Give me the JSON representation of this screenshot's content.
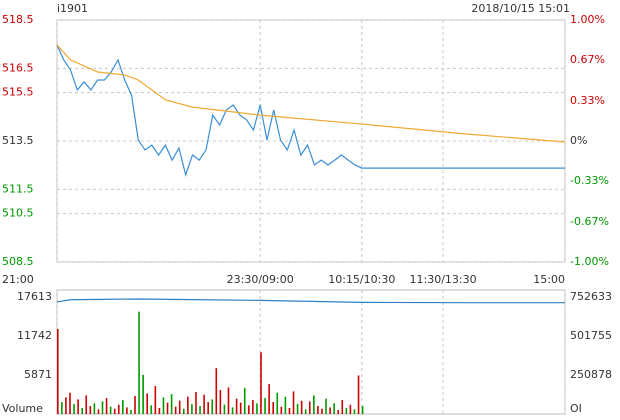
{
  "header": {
    "symbol": "i1901",
    "datetime": "2018/10/15 15:01"
  },
  "chart_data": [
    {
      "type": "line",
      "xlim": [
        0,
        375
      ],
      "xticks": [
        {
          "value": 0,
          "label": "21:00"
        },
        {
          "value": 150,
          "label": "23:30/09:00"
        },
        {
          "value": 225,
          "label": "10:15/10:30"
        },
        {
          "value": 285,
          "label": "11:30/13:30"
        },
        {
          "value": 375,
          "label": "15:00"
        }
      ],
      "ylim": [
        508.5,
        518.5
      ],
      "yticks": [
        518.5,
        516.5,
        515.5,
        513.5,
        511.5,
        510.5,
        508.5
      ],
      "y2lim": [
        -1,
        1
      ],
      "y2ticks": [
        {
          "value": 1,
          "label": "1.00%"
        },
        {
          "value": 0.67,
          "label": "0.67%"
        },
        {
          "value": 0.33,
          "label": "0.33%"
        },
        {
          "value": 0,
          "label": "0%"
        },
        {
          "value": -0.33,
          "label": "-0.33%"
        },
        {
          "value": -0.67,
          "label": "-0.67%"
        },
        {
          "value": -1,
          "label": "-1.00%"
        }
      ],
      "up_color": "#cc0000",
      "down_color": "#009900",
      "grid": true,
      "series": [
        {
          "color": "#3a8ed6",
          "x": [
            0,
            5,
            10,
            15,
            20,
            25,
            30,
            35,
            40,
            45,
            50,
            55,
            60,
            65,
            70,
            75,
            80,
            85,
            90,
            95,
            100,
            105,
            110,
            115,
            120,
            125,
            130,
            135,
            140,
            145,
            150,
            155,
            160,
            165,
            170,
            175,
            180,
            185,
            190,
            195,
            200,
            205,
            210,
            215,
            220,
            225,
            375
          ],
          "values": [
            517.47,
            516.85,
            516.43,
            515.61,
            515.94,
            515.61,
            516.02,
            516.02,
            516.35,
            516.85,
            516.02,
            515.4,
            513.54,
            513.13,
            513.33,
            512.92,
            513.33,
            512.71,
            513.21,
            512.1,
            512.92,
            512.71,
            513.13,
            514.57,
            514.16,
            514.78,
            514.99,
            514.57,
            514.37,
            513.95,
            514.99,
            513.54,
            514.78,
            513.54,
            513.13,
            513.95,
            512.92,
            513.33,
            512.51,
            512.71,
            512.51,
            512.71,
            512.92,
            512.71,
            512.51,
            512.38,
            512.38
          ]
        },
        {
          "color": "#f0a830",
          "x": [
            0,
            10,
            30,
            50,
            60,
            80,
            100,
            150,
            225,
            300,
            375
          ],
          "values": [
            517.47,
            516.85,
            516.35,
            516.23,
            516.02,
            515.2,
            514.9,
            514.57,
            514.2,
            513.8,
            513.46
          ]
        }
      ]
    },
    {
      "type": "bar",
      "y_label": "Volume",
      "y2_label": "OI",
      "xlim": [
        0,
        375
      ],
      "ylim": [
        0,
        18667
      ],
      "yticks": [
        17613,
        11742,
        5871
      ],
      "y2lim": [
        0,
        797700
      ],
      "y2ticks": [
        752633,
        501755,
        250878
      ],
      "up_color": "#cc0000",
      "down_color": "#009900",
      "series": [
        {
          "x": [
            0,
            3,
            6,
            9,
            12,
            15,
            18,
            21,
            24,
            27,
            30,
            33,
            36,
            39,
            42,
            45,
            48,
            51,
            54,
            57,
            60,
            63,
            66,
            69,
            72,
            75,
            78,
            81,
            84,
            87,
            90,
            93,
            96,
            99,
            102,
            105,
            108,
            111,
            114,
            117,
            120,
            123,
            126,
            129,
            132,
            135,
            138,
            141,
            144,
            147,
            150,
            153,
            156,
            159,
            162,
            165,
            168,
            171,
            174,
            177,
            180,
            183,
            186,
            189,
            192,
            195,
            198,
            201,
            204,
            207,
            210,
            213,
            216,
            219,
            222,
            225
          ],
          "values": [
            12800,
            1800,
            2500,
            3200,
            1500,
            2200,
            900,
            2800,
            1200,
            1600,
            700,
            1900,
            2400,
            1100,
            800,
            1400,
            2100,
            1000,
            600,
            2700,
            15400,
            5900,
            3100,
            1300,
            4200,
            900,
            2500,
            1700,
            3000,
            1100,
            2000,
            800,
            2600,
            1500,
            3300,
            1200,
            2900,
            1800,
            2200,
            6900,
            3600,
            1400,
            4000,
            1000,
            2300,
            1700,
            3900,
            1300,
            2100,
            1600,
            9300,
            2400,
            4500,
            1800,
            3200,
            1100,
            2600,
            900,
            3400,
            1500,
            2000,
            700,
            1900,
            2800,
            1200,
            800,
            2300,
            1000,
            1600,
            600,
            2100,
            900,
            1400,
            700,
            5800,
            1200
          ],
          "directions": [
            "up",
            "down",
            "up",
            "up",
            "down",
            "up",
            "down",
            "up",
            "up",
            "down",
            "up",
            "down",
            "up",
            "down",
            "up",
            "up",
            "down",
            "up",
            "down",
            "up",
            "down",
            "down",
            "up",
            "down",
            "up",
            "up",
            "down",
            "up",
            "down",
            "up",
            "up",
            "down",
            "up",
            "down",
            "up",
            "down",
            "up",
            "up",
            "down",
            "up",
            "up",
            "down",
            "up",
            "down",
            "up",
            "up",
            "down",
            "up",
            "up",
            "down",
            "up",
            "down",
            "up",
            "up",
            "down",
            "up",
            "down",
            "up",
            "up",
            "down",
            "up",
            "down",
            "up",
            "down",
            "up",
            "up",
            "down",
            "up",
            "down",
            "up",
            "up",
            "down",
            "up",
            "down",
            "up",
            "down"
          ]
        },
        {
          "axis": "y2",
          "color": "#2f7fc0",
          "x": [
            0,
            10,
            40,
            60,
            100,
            150,
            225,
            300,
            375
          ],
          "values": [
            721000,
            735000,
            738000,
            740000,
            736000,
            731000,
            718000,
            716000,
            716000
          ]
        }
      ]
    }
  ]
}
